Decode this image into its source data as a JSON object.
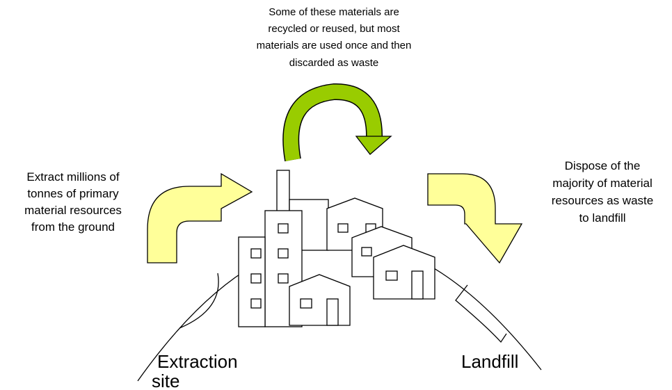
{
  "top_note": {
    "lines": [
      "Some of these materials are",
      "recycled or reused, but most",
      "materials are used once and then",
      "discarded  as waste"
    ]
  },
  "left_note": {
    "lines": [
      "Extract millions of",
      "tonnes of primary",
      "material resources",
      "from the ground"
    ]
  },
  "right_note": {
    "lines": [
      "Dispose of the",
      "majority of material",
      "resources as waste",
      "to landfill"
    ]
  },
  "labels": {
    "extraction": [
      "Extraction",
      "site"
    ],
    "landfill": "Landfill"
  }
}
